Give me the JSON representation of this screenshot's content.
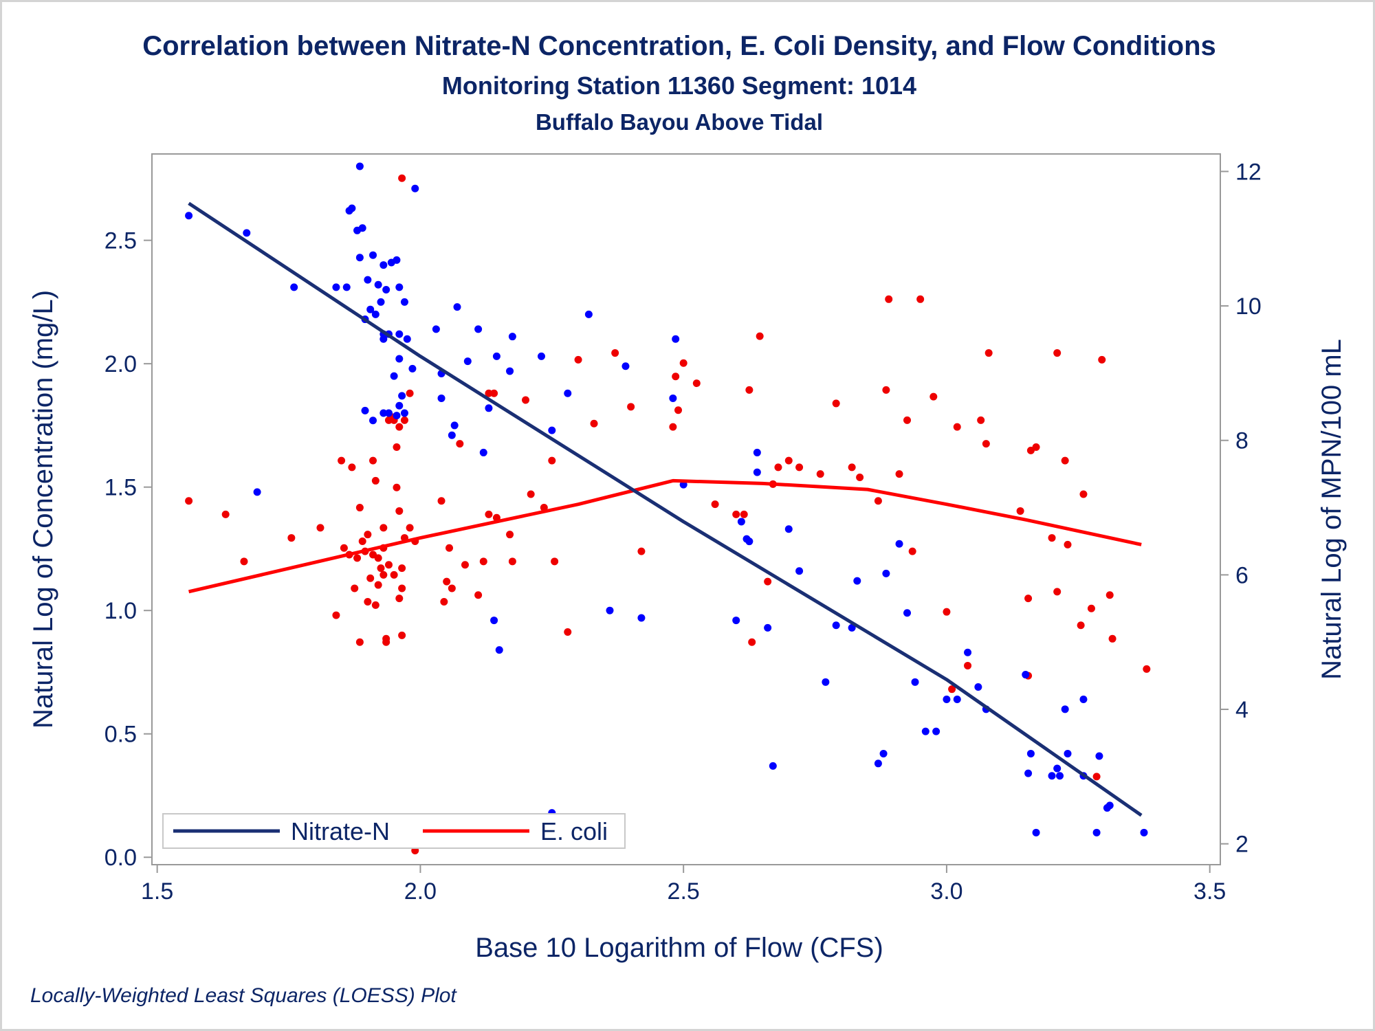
{
  "title": "Correlation between Nitrate-N Concentration, E. Coli Density, and Flow Conditions",
  "subtitle1": "Monitoring Station 11360 Segment: 1014",
  "subtitle2": "Buffalo Bayou Above Tidal",
  "footnote": "Locally-Weighted Least Squares (LOESS) Plot",
  "chart_data": {
    "type": "scatter",
    "xlabel": "Base 10 Logarithm of Flow (CFS)",
    "ylabel_left": "Natural Log of Concentration (mg/L)",
    "ylabel_right": "Natural Log of MPN/100 mL",
    "xlim": [
      1.49,
      3.52
    ],
    "ylim_left": [
      -0.03,
      2.85
    ],
    "ylim_right": [
      1.69,
      12.26
    ],
    "xticks": [
      "1.5",
      "2.0",
      "2.5",
      "3.0",
      "3.5"
    ],
    "yticks_left": [
      "0.0",
      "0.5",
      "1.0",
      "1.5",
      "2.0",
      "2.5"
    ],
    "yticks_right": [
      "2",
      "4",
      "6",
      "8",
      "10",
      "12"
    ],
    "grid": false,
    "legend_position": "bottom-left",
    "colors": {
      "nitrate": "#1a2f74",
      "ecoli": "#ff0000",
      "nitrate_points": "#0000ff",
      "ecoli_points": "#ee0000"
    },
    "series": [
      {
        "name": "Nitrate-N",
        "axis": "left",
        "points": [
          [
            1.56,
            2.6
          ],
          [
            1.67,
            2.53
          ],
          [
            1.69,
            1.48
          ],
          [
            1.76,
            2.31
          ],
          [
            1.84,
            2.31
          ],
          [
            1.86,
            2.31
          ],
          [
            1.865,
            2.62
          ],
          [
            1.87,
            2.63
          ],
          [
            1.88,
            2.54
          ],
          [
            1.89,
            2.55
          ],
          [
            1.885,
            2.8
          ],
          [
            1.885,
            2.43
          ],
          [
            1.9,
            2.34
          ],
          [
            1.905,
            2.22
          ],
          [
            1.91,
            2.44
          ],
          [
            1.92,
            2.32
          ],
          [
            1.925,
            2.25
          ],
          [
            1.93,
            2.4
          ],
          [
            1.935,
            2.3
          ],
          [
            1.945,
            2.41
          ],
          [
            1.955,
            2.42
          ],
          [
            1.96,
            2.31
          ],
          [
            1.97,
            2.25
          ],
          [
            1.99,
            2.71
          ],
          [
            1.895,
            2.18
          ],
          [
            1.915,
            2.2
          ],
          [
            1.93,
            2.1
          ],
          [
            1.93,
            2.12
          ],
          [
            1.94,
            2.12
          ],
          [
            1.96,
            2.12
          ],
          [
            1.975,
            2.1
          ],
          [
            1.96,
            2.02
          ],
          [
            1.985,
            1.98
          ],
          [
            1.95,
            1.95
          ],
          [
            1.965,
            1.87
          ],
          [
            1.96,
            1.83
          ],
          [
            1.895,
            1.81
          ],
          [
            1.91,
            1.77
          ],
          [
            1.93,
            1.8
          ],
          [
            1.94,
            1.8
          ],
          [
            1.955,
            1.79
          ],
          [
            1.97,
            1.8
          ],
          [
            2.03,
            2.14
          ],
          [
            2.04,
            1.96
          ],
          [
            2.04,
            1.86
          ],
          [
            2.06,
            1.71
          ],
          [
            2.065,
            1.75
          ],
          [
            2.07,
            2.23
          ],
          [
            2.09,
            2.01
          ],
          [
            2.11,
            2.14
          ],
          [
            2.12,
            1.64
          ],
          [
            2.13,
            1.82
          ],
          [
            2.145,
            2.03
          ],
          [
            2.17,
            1.97
          ],
          [
            2.175,
            2.11
          ],
          [
            2.23,
            2.03
          ],
          [
            2.25,
            1.73
          ],
          [
            2.28,
            1.88
          ],
          [
            2.32,
            2.2
          ],
          [
            2.39,
            1.99
          ],
          [
            2.48,
            1.86
          ],
          [
            2.485,
            2.1
          ],
          [
            2.5,
            1.51
          ],
          [
            2.61,
            1.36
          ],
          [
            2.62,
            1.29
          ],
          [
            2.625,
            1.28
          ],
          [
            2.64,
            1.64
          ],
          [
            2.64,
            1.56
          ],
          [
            2.7,
            1.33
          ],
          [
            2.72,
            1.16
          ],
          [
            2.66,
            0.93
          ],
          [
            2.6,
            0.96
          ],
          [
            2.36,
            1.0
          ],
          [
            2.42,
            0.97
          ],
          [
            2.14,
            0.96
          ],
          [
            2.15,
            0.84
          ],
          [
            2.25,
            0.18
          ],
          [
            2.67,
            0.37
          ],
          [
            2.77,
            0.71
          ],
          [
            2.79,
            0.94
          ],
          [
            2.82,
            0.93
          ],
          [
            2.83,
            1.12
          ],
          [
            2.87,
            0.38
          ],
          [
            2.88,
            0.42
          ],
          [
            2.885,
            1.15
          ],
          [
            2.91,
            1.27
          ],
          [
            2.925,
            0.99
          ],
          [
            2.94,
            0.71
          ],
          [
            2.96,
            0.51
          ],
          [
            2.98,
            0.51
          ],
          [
            3.0,
            0.64
          ],
          [
            3.02,
            0.64
          ],
          [
            3.04,
            0.83
          ],
          [
            3.06,
            0.69
          ],
          [
            3.075,
            0.6
          ],
          [
            3.15,
            0.74
          ],
          [
            3.155,
            0.34
          ],
          [
            3.16,
            0.42
          ],
          [
            3.17,
            0.1
          ],
          [
            3.2,
            0.33
          ],
          [
            3.21,
            0.36
          ],
          [
            3.215,
            0.33
          ],
          [
            3.225,
            0.6
          ],
          [
            3.23,
            0.42
          ],
          [
            3.26,
            0.64
          ],
          [
            3.26,
            0.33
          ],
          [
            3.285,
            0.1
          ],
          [
            3.29,
            0.41
          ],
          [
            3.305,
            0.2
          ],
          [
            3.31,
            0.21
          ],
          [
            3.375,
            0.1
          ]
        ],
        "fit": [
          [
            1.56,
            2.65
          ],
          [
            2.0,
            2.03
          ],
          [
            2.5,
            1.36
          ],
          [
            3.0,
            0.72
          ],
          [
            3.37,
            0.17
          ]
        ]
      },
      {
        "name": "E. coli",
        "axis": "right",
        "points": [
          [
            1.56,
            7.1
          ],
          [
            1.63,
            6.9
          ],
          [
            1.665,
            6.2
          ],
          [
            1.68,
            2.3
          ],
          [
            1.755,
            6.55
          ],
          [
            1.81,
            6.7
          ],
          [
            1.84,
            5.4
          ],
          [
            1.85,
            7.7
          ],
          [
            1.855,
            6.4
          ],
          [
            1.865,
            6.3
          ],
          [
            1.87,
            7.6
          ],
          [
            1.875,
            5.8
          ],
          [
            1.88,
            6.25
          ],
          [
            1.885,
            5.0
          ],
          [
            1.89,
            6.5
          ],
          [
            1.895,
            6.35
          ],
          [
            1.9,
            5.6
          ],
          [
            1.905,
            5.95
          ],
          [
            1.91,
            6.3
          ],
          [
            1.91,
            7.7
          ],
          [
            1.915,
            7.4
          ],
          [
            1.915,
            5.55
          ],
          [
            1.92,
            6.25
          ],
          [
            1.925,
            6.1
          ],
          [
            1.93,
            6.4
          ],
          [
            1.93,
            6.7
          ],
          [
            1.935,
            5.05
          ],
          [
            1.935,
            5.0
          ],
          [
            1.94,
            6.15
          ],
          [
            1.94,
            8.3
          ],
          [
            1.945,
            8.35
          ],
          [
            1.95,
            8.3
          ],
          [
            1.95,
            6.0
          ],
          [
            1.955,
            7.3
          ],
          [
            1.955,
            7.9
          ],
          [
            1.96,
            8.2
          ],
          [
            1.96,
            6.95
          ],
          [
            1.965,
            6.1
          ],
          [
            1.965,
            5.8
          ],
          [
            1.965,
            5.1
          ],
          [
            1.97,
            8.3
          ],
          [
            1.965,
            11.9
          ],
          [
            1.98,
            6.7
          ],
          [
            1.99,
            6.5
          ],
          [
            1.98,
            8.7
          ],
          [
            1.99,
            1.9
          ],
          [
            1.97,
            6.55
          ],
          [
            1.96,
            5.65
          ],
          [
            1.93,
            6.0
          ],
          [
            1.92,
            5.85
          ],
          [
            1.9,
            6.6
          ],
          [
            1.885,
            7.0
          ],
          [
            2.04,
            7.1
          ],
          [
            2.05,
            5.9
          ],
          [
            2.055,
            6.4
          ],
          [
            2.045,
            5.6
          ],
          [
            2.06,
            5.8
          ],
          [
            2.075,
            7.95
          ],
          [
            2.085,
            6.15
          ],
          [
            2.11,
            5.7
          ],
          [
            2.12,
            6.2
          ],
          [
            2.13,
            6.9
          ],
          [
            2.13,
            8.7
          ],
          [
            2.14,
            8.7
          ],
          [
            2.145,
            6.85
          ],
          [
            2.17,
            6.6
          ],
          [
            2.175,
            6.2
          ],
          [
            2.21,
            7.2
          ],
          [
            2.2,
            8.6
          ],
          [
            2.235,
            7.0
          ],
          [
            2.25,
            7.7
          ],
          [
            2.255,
            6.2
          ],
          [
            2.28,
            5.15
          ],
          [
            2.3,
            9.2
          ],
          [
            2.33,
            8.25
          ],
          [
            2.37,
            9.3
          ],
          [
            2.42,
            6.35
          ],
          [
            2.4,
            8.5
          ],
          [
            2.48,
            8.2
          ],
          [
            2.49,
            8.45
          ],
          [
            2.485,
            8.95
          ],
          [
            2.5,
            9.15
          ],
          [
            2.525,
            8.85
          ],
          [
            2.56,
            7.05
          ],
          [
            2.6,
            6.9
          ],
          [
            2.615,
            6.9
          ],
          [
            2.63,
            5.0
          ],
          [
            2.625,
            8.75
          ],
          [
            2.645,
            9.55
          ],
          [
            2.66,
            5.9
          ],
          [
            2.67,
            7.35
          ],
          [
            2.68,
            7.6
          ],
          [
            2.7,
            7.7
          ],
          [
            2.72,
            7.6
          ],
          [
            2.76,
            7.5
          ],
          [
            2.79,
            8.55
          ],
          [
            2.82,
            7.6
          ],
          [
            2.835,
            7.45
          ],
          [
            2.87,
            7.1
          ],
          [
            2.885,
            8.75
          ],
          [
            2.89,
            10.1
          ],
          [
            2.91,
            7.5
          ],
          [
            2.925,
            8.3
          ],
          [
            2.935,
            6.35
          ],
          [
            2.95,
            10.1
          ],
          [
            2.975,
            8.65
          ],
          [
            3.0,
            5.45
          ],
          [
            3.01,
            4.3
          ],
          [
            3.02,
            8.2
          ],
          [
            3.04,
            4.65
          ],
          [
            3.065,
            8.3
          ],
          [
            3.075,
            7.95
          ],
          [
            3.08,
            9.3
          ],
          [
            3.14,
            6.95
          ],
          [
            3.155,
            4.5
          ],
          [
            3.155,
            5.65
          ],
          [
            3.16,
            7.85
          ],
          [
            3.17,
            7.9
          ],
          [
            3.2,
            6.55
          ],
          [
            3.21,
            9.3
          ],
          [
            3.21,
            5.75
          ],
          [
            3.225,
            7.7
          ],
          [
            3.23,
            6.45
          ],
          [
            3.255,
            5.25
          ],
          [
            3.26,
            7.2
          ],
          [
            3.275,
            5.5
          ],
          [
            3.285,
            3.0
          ],
          [
            3.295,
            9.2
          ],
          [
            3.31,
            5.7
          ],
          [
            3.315,
            5.05
          ],
          [
            3.38,
            4.6
          ]
        ],
        "fit": [
          [
            1.56,
            5.75
          ],
          [
            2.0,
            6.55
          ],
          [
            2.3,
            7.05
          ],
          [
            2.48,
            7.4
          ],
          [
            2.65,
            7.36
          ],
          [
            2.85,
            7.27
          ],
          [
            3.0,
            7.05
          ],
          [
            3.15,
            6.82
          ],
          [
            3.37,
            6.45
          ]
        ]
      }
    ]
  }
}
